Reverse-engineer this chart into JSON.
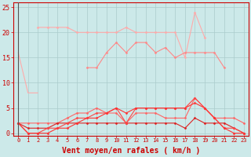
{
  "title": "",
  "xlabel": "Vent moyen/en rafales ( km/h )",
  "x": [
    0,
    1,
    2,
    3,
    4,
    5,
    6,
    7,
    8,
    9,
    10,
    11,
    12,
    13,
    14,
    15,
    16,
    17,
    18,
    19,
    20,
    21,
    22,
    23
  ],
  "series": [
    {
      "color": "#ffaaaa",
      "lw": 0.8,
      "marker": null,
      "y": [
        16,
        8,
        8,
        null,
        null,
        null,
        null,
        null,
        null,
        null,
        null,
        null,
        null,
        null,
        null,
        null,
        null,
        null,
        null,
        null,
        null,
        null,
        null,
        null
      ]
    },
    {
      "color": "#ffaaaa",
      "lw": 0.8,
      "marker": "D",
      "markersize": 1.5,
      "y": [
        null,
        null,
        21,
        21,
        21,
        21,
        20,
        20,
        20,
        20,
        20,
        21,
        20,
        20,
        20,
        20,
        20,
        15,
        24,
        19,
        null,
        null,
        null,
        null
      ]
    },
    {
      "color": "#ff8888",
      "lw": 0.8,
      "marker": "D",
      "markersize": 1.5,
      "y": [
        null,
        null,
        null,
        null,
        null,
        null,
        null,
        13,
        13,
        16,
        18,
        16,
        18,
        18,
        16,
        17,
        15,
        16,
        16,
        16,
        16,
        13,
        null,
        null
      ]
    },
    {
      "color": "#ff6666",
      "lw": 0.8,
      "marker": "D",
      "markersize": 1.5,
      "y": [
        2,
        2,
        2,
        2,
        2,
        3,
        4,
        4,
        5,
        4,
        4,
        2,
        4,
        4,
        4,
        3,
        3,
        3,
        7,
        5,
        3,
        3,
        3,
        2
      ]
    },
    {
      "color": "#dd2222",
      "lw": 0.8,
      "marker": "D",
      "markersize": 1.5,
      "y": [
        2,
        1,
        1,
        1,
        2,
        2,
        2,
        2,
        2,
        2,
        2,
        2,
        2,
        2,
        2,
        2,
        2,
        1,
        3,
        2,
        2,
        2,
        1,
        0
      ]
    },
    {
      "color": "#ff4444",
      "lw": 0.8,
      "marker": "D",
      "markersize": 1.5,
      "y": [
        2,
        0,
        0,
        1,
        1,
        2,
        3,
        3,
        4,
        4,
        5,
        2,
        5,
        5,
        5,
        5,
        5,
        5,
        7,
        5,
        3,
        1,
        1,
        0
      ]
    },
    {
      "color": "#ff3333",
      "lw": 0.8,
      "marker": "D",
      "markersize": 1.5,
      "y": [
        2,
        0,
        0,
        0,
        1,
        1,
        2,
        3,
        3,
        4,
        5,
        4,
        5,
        5,
        5,
        5,
        5,
        5,
        6,
        5,
        3,
        1,
        0,
        0
      ]
    }
  ],
  "ylim": [
    -0.5,
    26
  ],
  "yticks": [
    0,
    5,
    10,
    15,
    20,
    25
  ],
  "bg_color": "#cce9e9",
  "grid_color": "#aacccc",
  "text_color": "#cc0000",
  "axis_color": "#cc0000",
  "xlabel_fontsize": 7,
  "tick_fontsize": 5
}
